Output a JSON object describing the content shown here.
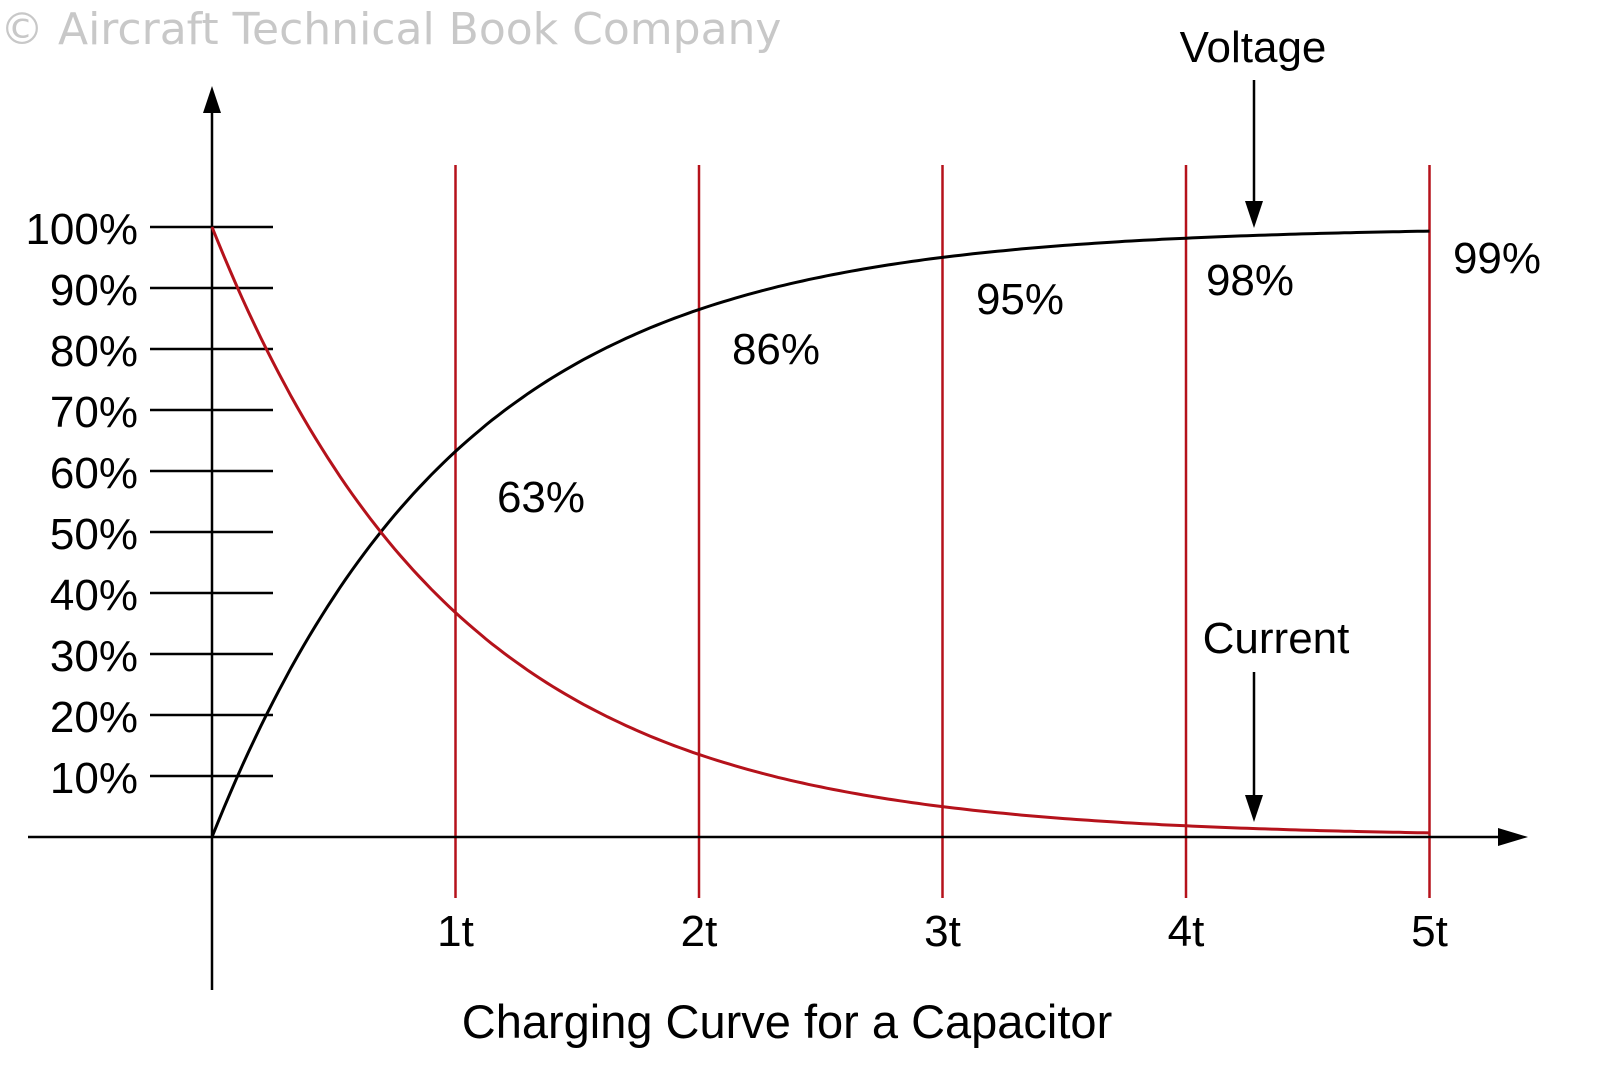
{
  "watermark": "© Aircraft Technical Book Company",
  "chart_data": {
    "type": "line",
    "title": "Charging Curve for a Capacitor",
    "x": [
      0,
      1,
      2,
      3,
      4,
      5
    ],
    "x_tick_labels": [
      "1t",
      "2t",
      "3t",
      "4t",
      "5t"
    ],
    "y_tick_labels": [
      "100%",
      "90%",
      "80%",
      "70%",
      "60%",
      "50%",
      "40%",
      "30%",
      "20%",
      "10%"
    ],
    "xlim": [
      0,
      5
    ],
    "ylim": [
      0,
      100
    ],
    "series": [
      {
        "name": "Voltage",
        "color": "#000000",
        "values": [
          0,
          63,
          86,
          95,
          98,
          99
        ]
      },
      {
        "name": "Current",
        "color": "#b5121b",
        "values": [
          100,
          37,
          14,
          5,
          2,
          1
        ]
      }
    ],
    "data_labels": [
      "63%",
      "86%",
      "95%",
      "98%",
      "99%"
    ],
    "grid_color": "#b5121b"
  }
}
